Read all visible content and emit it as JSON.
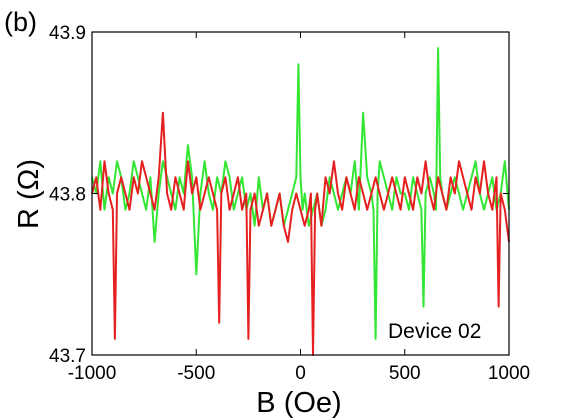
{
  "chart_data": {
    "type": "line",
    "panel_label": "(b)",
    "annotation": "Device 02",
    "xlabel": "B (Oe)",
    "ylabel": "R (Ω)",
    "xlim": [
      -1000,
      1000
    ],
    "ylim": [
      43.7,
      43.9
    ],
    "xticks": [
      -1000,
      -500,
      0,
      500,
      1000
    ],
    "xtick_labels": [
      "-1000",
      "-500",
      "0",
      "500",
      "1000"
    ],
    "yticks": [
      43.7,
      43.8,
      43.9
    ],
    "ytick_labels": [
      "43.7",
      "43.8",
      "43.9"
    ],
    "grid": false,
    "legend": "none",
    "series": [
      {
        "color": "#33e633",
        "x": [
          -1000,
          -980,
          -960,
          -940,
          -920,
          -900,
          -880,
          -860,
          -840,
          -820,
          -800,
          -780,
          -760,
          -740,
          -720,
          -700,
          -680,
          -660,
          -640,
          -620,
          -600,
          -580,
          -560,
          -540,
          -520,
          -500,
          -480,
          -460,
          -440,
          -420,
          -400,
          -380,
          -360,
          -340,
          -320,
          -300,
          -280,
          -260,
          -240,
          -220,
          -200,
          -180,
          -160,
          -140,
          -120,
          -100,
          -80,
          -60,
          -40,
          -20,
          -10,
          0,
          10,
          20,
          40,
          60,
          80,
          100,
          120,
          140,
          160,
          180,
          200,
          220,
          240,
          260,
          280,
          300,
          320,
          340,
          350,
          360,
          370,
          380,
          400,
          420,
          440,
          460,
          480,
          500,
          520,
          540,
          560,
          580,
          590,
          600,
          620,
          640,
          650,
          660,
          670,
          680,
          700,
          720,
          740,
          760,
          780,
          800,
          820,
          840,
          860,
          880,
          900,
          920,
          940,
          960,
          980,
          1000
        ],
        "y": [
          43.81,
          43.8,
          43.82,
          43.79,
          43.81,
          43.8,
          43.82,
          43.81,
          43.79,
          43.8,
          43.82,
          43.81,
          43.8,
          43.79,
          43.81,
          43.77,
          43.8,
          43.82,
          43.81,
          43.8,
          43.79,
          43.81,
          43.8,
          43.83,
          43.81,
          43.75,
          43.8,
          43.82,
          43.8,
          43.79,
          43.81,
          43.8,
          43.82,
          43.81,
          43.79,
          43.8,
          43.81,
          43.79,
          43.8,
          43.78,
          43.81,
          43.79,
          43.8,
          43.78,
          43.79,
          43.8,
          43.78,
          43.79,
          43.8,
          43.81,
          43.88,
          43.81,
          43.79,
          43.8,
          43.78,
          43.79,
          43.8,
          43.78,
          43.79,
          43.81,
          43.8,
          43.79,
          43.8,
          43.81,
          43.8,
          43.82,
          43.79,
          43.85,
          43.81,
          43.8,
          43.79,
          43.71,
          43.8,
          43.82,
          43.81,
          43.8,
          43.79,
          43.81,
          43.8,
          43.8,
          43.79,
          43.81,
          43.8,
          43.79,
          43.73,
          43.8,
          43.81,
          43.8,
          43.79,
          43.89,
          43.81,
          43.8,
          43.79,
          43.8,
          43.81,
          43.8,
          43.79,
          43.8,
          43.81,
          43.82,
          43.8,
          43.79,
          43.8,
          43.81,
          43.79,
          43.8,
          43.82,
          43.79
        ]
      },
      {
        "color": "#e62020",
        "x": [
          -1000,
          -980,
          -960,
          -940,
          -920,
          -900,
          -890,
          -880,
          -860,
          -840,
          -820,
          -800,
          -780,
          -760,
          -740,
          -720,
          -700,
          -680,
          -660,
          -640,
          -620,
          -600,
          -580,
          -560,
          -540,
          -520,
          -500,
          -480,
          -460,
          -440,
          -420,
          -400,
          -390,
          -380,
          -360,
          -340,
          -320,
          -300,
          -280,
          -260,
          -250,
          -240,
          -220,
          -200,
          -180,
          -160,
          -140,
          -120,
          -100,
          -80,
          -60,
          -40,
          -20,
          0,
          20,
          40,
          50,
          60,
          70,
          80,
          100,
          120,
          140,
          160,
          180,
          200,
          220,
          240,
          260,
          280,
          300,
          320,
          340,
          360,
          380,
          400,
          420,
          440,
          460,
          480,
          500,
          520,
          540,
          560,
          580,
          600,
          620,
          640,
          660,
          680,
          700,
          720,
          740,
          760,
          780,
          800,
          820,
          840,
          860,
          880,
          900,
          920,
          940,
          950,
          960,
          980,
          1000
        ],
        "y": [
          43.8,
          43.81,
          43.79,
          43.82,
          43.8,
          43.79,
          43.71,
          43.8,
          43.81,
          43.8,
          43.79,
          43.81,
          43.8,
          43.82,
          43.81,
          43.8,
          43.79,
          43.81,
          43.85,
          43.8,
          43.79,
          43.81,
          43.8,
          43.79,
          43.82,
          43.8,
          43.81,
          43.79,
          43.8,
          43.81,
          43.8,
          43.79,
          43.72,
          43.8,
          43.81,
          43.79,
          43.8,
          43.81,
          43.79,
          43.8,
          43.71,
          43.79,
          43.8,
          43.78,
          43.79,
          43.8,
          43.78,
          43.79,
          43.8,
          43.78,
          43.77,
          43.79,
          43.8,
          43.79,
          43.78,
          43.79,
          43.8,
          43.7,
          43.79,
          43.8,
          43.78,
          43.81,
          43.8,
          43.82,
          43.8,
          43.79,
          43.81,
          43.8,
          43.79,
          43.81,
          43.8,
          43.79,
          43.8,
          43.81,
          43.8,
          43.79,
          43.8,
          43.81,
          43.8,
          43.79,
          43.81,
          43.8,
          43.79,
          43.81,
          43.8,
          43.82,
          43.8,
          43.79,
          43.81,
          43.8,
          43.79,
          43.81,
          43.8,
          43.82,
          43.81,
          43.8,
          43.79,
          43.81,
          43.8,
          43.82,
          43.8,
          43.79,
          43.81,
          43.73,
          43.8,
          43.79,
          43.77
        ]
      }
    ]
  }
}
